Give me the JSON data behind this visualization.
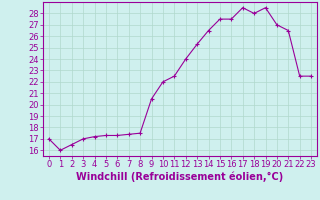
{
  "x": [
    0,
    1,
    2,
    3,
    4,
    5,
    6,
    7,
    8,
    9,
    10,
    11,
    12,
    13,
    14,
    15,
    16,
    17,
    18,
    19,
    20,
    21,
    22,
    23
  ],
  "y": [
    17.0,
    16.0,
    16.5,
    17.0,
    17.2,
    17.3,
    17.3,
    17.4,
    17.5,
    20.5,
    22.0,
    22.5,
    24.0,
    25.3,
    26.5,
    27.5,
    27.5,
    28.5,
    28.0,
    28.5,
    27.0,
    26.5,
    22.5,
    22.5
  ],
  "line_color": "#990099",
  "marker": "+",
  "marker_size": 3,
  "marker_linewidth": 0.8,
  "background_color": "#cff0ee",
  "grid_color": "#b0d8cc",
  "ylabel_ticks": [
    16,
    17,
    18,
    19,
    20,
    21,
    22,
    23,
    24,
    25,
    26,
    27,
    28
  ],
  "xlabel": "Windchill (Refroidissement éolien,°C)",
  "xlim": [
    -0.5,
    23.5
  ],
  "ylim": [
    15.5,
    29.0
  ],
  "tick_color": "#990099",
  "label_color": "#990099",
  "font_size": 6,
  "xlabel_fontsize": 7
}
